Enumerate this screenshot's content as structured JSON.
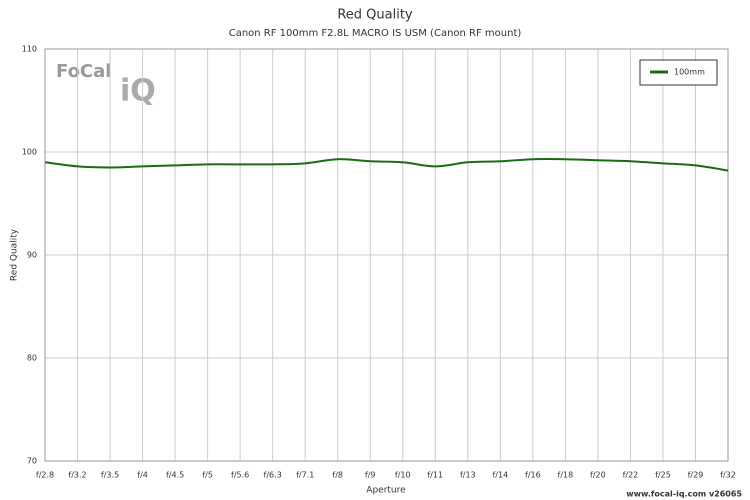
{
  "chart_data": {
    "type": "line",
    "title": "Red Quality",
    "subtitle": "Canon RF 100mm F2.8L MACRO IS USM (Canon RF mount)",
    "x_label": "Aperture",
    "y_label": "Red Quality",
    "logo": {
      "left": "FoCal",
      "right": "iQ"
    },
    "footer": "www.focal-iq.com  v26065",
    "categories": [
      "f/2.8",
      "f/3.2",
      "f/3.5",
      "f/4",
      "f/4.5",
      "f/5",
      "f/5.6",
      "f/6.3",
      "f/7.1",
      "f/8",
      "f/9",
      "f/10",
      "f/11",
      "f/13",
      "f/14",
      "f/16",
      "f/18",
      "f/20",
      "f/22",
      "f/25",
      "f/29",
      "f/32"
    ],
    "series": [
      {
        "name": "100mm",
        "color": "#1a6b12",
        "values": [
          99.0,
          98.6,
          98.5,
          98.6,
          98.7,
          98.8,
          98.8,
          98.8,
          98.9,
          99.3,
          99.1,
          99.0,
          98.6,
          99.0,
          99.1,
          99.3,
          99.3,
          99.2,
          99.1,
          98.9,
          98.7,
          98.2
        ]
      }
    ],
    "ylim": [
      70,
      110
    ],
    "yticks": [
      70,
      80,
      90,
      100,
      110
    ],
    "grid": true,
    "legend": "top-right"
  }
}
